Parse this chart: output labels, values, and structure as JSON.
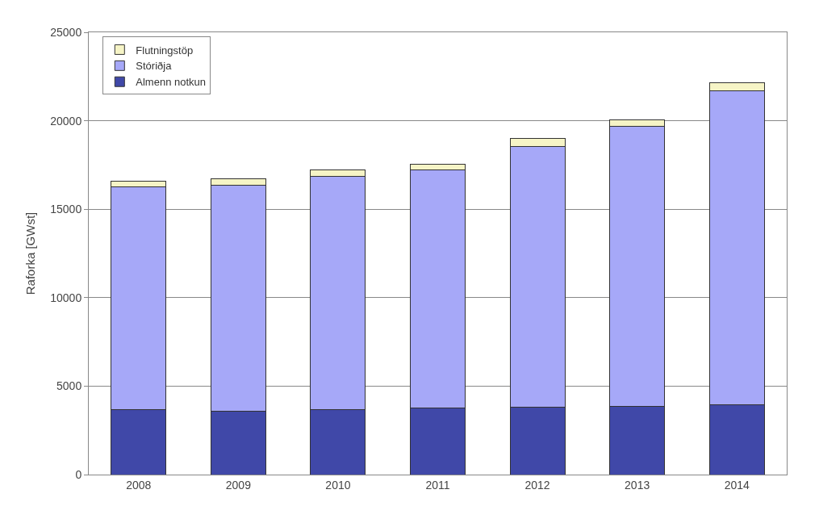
{
  "chart_data": {
    "type": "bar",
    "stacked": true,
    "ylabel": "Raforka [GWst]",
    "categories": [
      "2008",
      "2009",
      "2010",
      "2011",
      "2012",
      "2013",
      "2014"
    ],
    "series": [
      {
        "name": "Almenn notkun",
        "color": "#4048a8",
        "values": [
          3650,
          3600,
          3650,
          3750,
          3800,
          3850,
          3950
        ]
      },
      {
        "name": "Stóriðja",
        "color": "#a6a8f8",
        "values": [
          12600,
          12750,
          13200,
          13450,
          14750,
          15850,
          17750
        ]
      },
      {
        "name": "Flutningstöp",
        "color": "#f6f4c6",
        "values": [
          350,
          350,
          350,
          350,
          450,
          350,
          450
        ]
      }
    ],
    "ylim": [
      0,
      25000
    ],
    "yticks": [
      0,
      5000,
      10000,
      15000,
      20000,
      25000
    ],
    "grid": "y",
    "legend": "top left"
  }
}
